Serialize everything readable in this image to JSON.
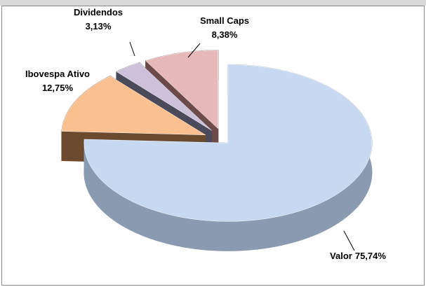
{
  "chart_data": {
    "type": "pie",
    "categories": [
      "Valor",
      "Ibovespa Ativo",
      "Dividendos",
      "Small Caps"
    ],
    "values": [
      75.74,
      12.75,
      3.13,
      8.38
    ],
    "value_labels": [
      "75,74%",
      "12,75%",
      "3,13%",
      "8,38%"
    ],
    "colors": [
      "#c6d9f1",
      "#fac090",
      "#ccc0da",
      "#e6b9b8"
    ],
    "side_colors": [
      "#8a9ab0",
      "#6b4a2e",
      "#4a4a5a",
      "#6b4a48"
    ]
  }
}
